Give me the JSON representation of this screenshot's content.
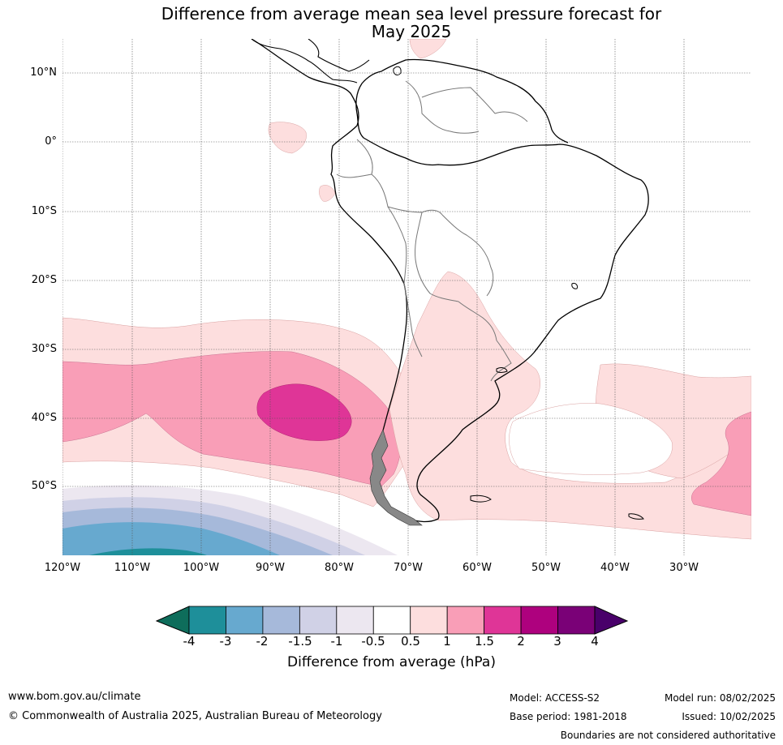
{
  "title": {
    "line1": "Difference from average mean sea level pressure forecast for",
    "line2": "May 2025"
  },
  "map": {
    "lat_labels": [
      "10°N",
      "0°",
      "10°S",
      "20°S",
      "30°S",
      "40°S",
      "50°S"
    ],
    "lon_labels": [
      "120°W",
      "110°W",
      "100°W",
      "90°W",
      "80°W",
      "70°W",
      "60°W",
      "50°W",
      "40°W",
      "30°W"
    ]
  },
  "colorbar": {
    "tick_labels": [
      "-4",
      "-3",
      "-2",
      "-1.5",
      "-1",
      "-0.5",
      "0.5",
      "1",
      "1.5",
      "2",
      "3",
      "4"
    ],
    "colors": [
      "#0e6d5b",
      "#1e8f9a",
      "#67a9cf",
      "#a6b9da",
      "#d0d1e6",
      "#ece7f0",
      "#ffffff",
      "#fddede",
      "#f99eb7",
      "#df3597",
      "#ae017e",
      "#7a0177",
      "#49006a"
    ],
    "title": "Difference from average (hPa)"
  },
  "footer": {
    "url": "www.bom.gov.au/climate",
    "copyright": "© Commonwealth of Australia 2025, Australian Bureau of Meteorology",
    "model": "Model: ACCESS-S2",
    "base_period": "Base period: 1981-2018",
    "model_run": "Model run: 08/02/2025",
    "issued": "Issued: 10/02/2025",
    "disclaimer": "Boundaries are not considered authoritative"
  }
}
